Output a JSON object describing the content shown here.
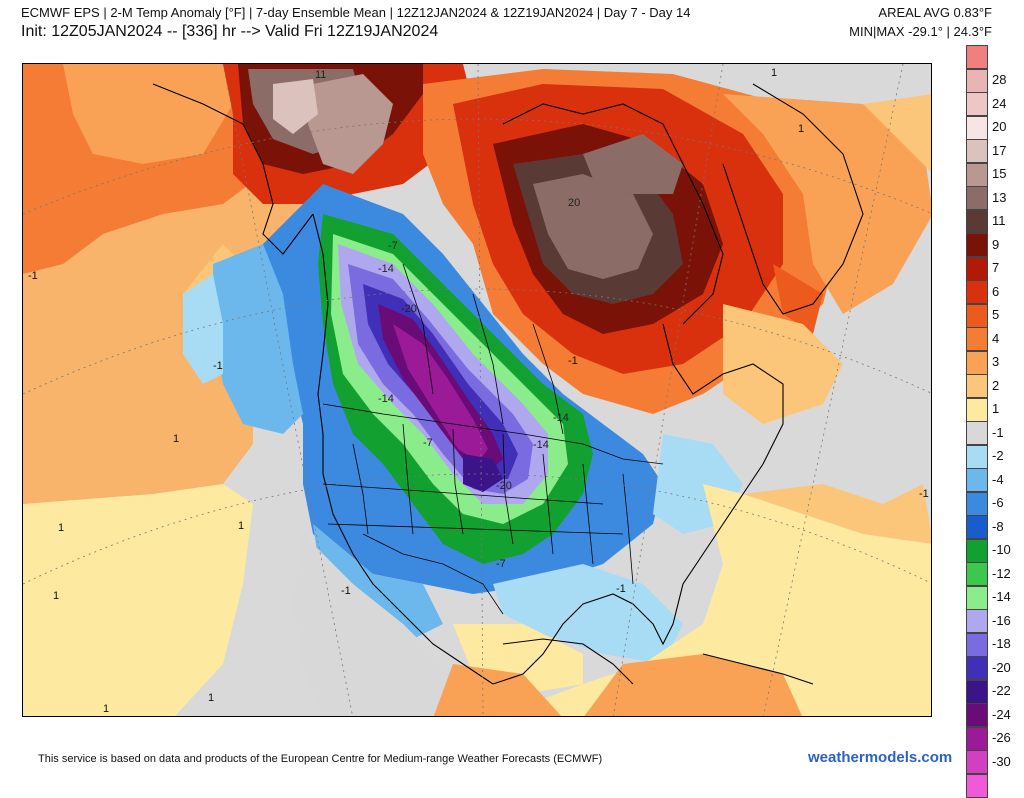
{
  "header": {
    "title": "ECMWF EPS | 2-M Temp Anomaly [°F] | 7-day Ensemble Mean | 12Z12JAN2024 & 12Z19JAN2024 | Day 7 - Day 14",
    "init": "Init: 12Z05JAN2024 -- [336] hr --> Valid Fri 12Z19JAN2024",
    "areal_avg": "AREAL AVG 0.83°F",
    "minmax": "MIN|MAX -29.1° | 24.3°F"
  },
  "colorbar": {
    "top_swatch_color": "#f08080",
    "levels": [
      {
        "label": "28",
        "color": "#e8b4b4"
      },
      {
        "label": "24",
        "color": "#efc6c6"
      },
      {
        "label": "20",
        "color": "#f7e4e4"
      },
      {
        "label": "17",
        "color": "#dcc2bc"
      },
      {
        "label": "15",
        "color": "#b89890"
      },
      {
        "label": "13",
        "color": "#8c6c66"
      },
      {
        "label": "11",
        "color": "#5a3a34"
      },
      {
        "label": "9",
        "color": "#7a1208"
      },
      {
        "label": "7",
        "color": "#b21a08"
      },
      {
        "label": "6",
        "color": "#d9300e"
      },
      {
        "label": "5",
        "color": "#ec5a1e"
      },
      {
        "label": "4",
        "color": "#f47c34"
      },
      {
        "label": "3",
        "color": "#f9a256"
      },
      {
        "label": "2",
        "color": "#fbc67a"
      },
      {
        "label": "1",
        "color": "#fdeaa0"
      },
      {
        "label": "-1",
        "color": "#d8d8d8"
      },
      {
        "label": "-2",
        "color": "#a8dcf4"
      },
      {
        "label": "-4",
        "color": "#6cb8ec"
      },
      {
        "label": "-6",
        "color": "#3c8ae0"
      },
      {
        "label": "-8",
        "color": "#1a5ccc"
      },
      {
        "label": "-10",
        "color": "#12a030"
      },
      {
        "label": "-12",
        "color": "#3cc84c"
      },
      {
        "label": "-14",
        "color": "#8aec8a"
      },
      {
        "label": "-16",
        "color": "#b0a8ee"
      },
      {
        "label": "-18",
        "color": "#7a6ce0"
      },
      {
        "label": "-20",
        "color": "#4030b8"
      },
      {
        "label": "-22",
        "color": "#3a1488"
      },
      {
        "label": "-24",
        "color": "#6a0c78"
      },
      {
        "label": "-26",
        "color": "#9a1a98"
      },
      {
        "label": "-30",
        "color": "#d040c0"
      }
    ],
    "bottom_swatch_color": "#f05ad8"
  },
  "map": {
    "contour_labels": [
      "1",
      "1",
      "1",
      "1",
      "1",
      "1",
      "1",
      "1",
      "-1",
      "-1",
      "-1",
      "-1",
      "-1",
      "-1",
      "-14",
      "-14",
      "-20",
      "-20",
      "-14",
      "-7",
      "-14",
      "20",
      "11",
      "-7",
      "-7"
    ]
  },
  "footer": {
    "credit": "This service is based on data and products of the European Centre for Medium-range Weather Forecasts (ECMWF)",
    "brand": "weathermodels.com"
  }
}
